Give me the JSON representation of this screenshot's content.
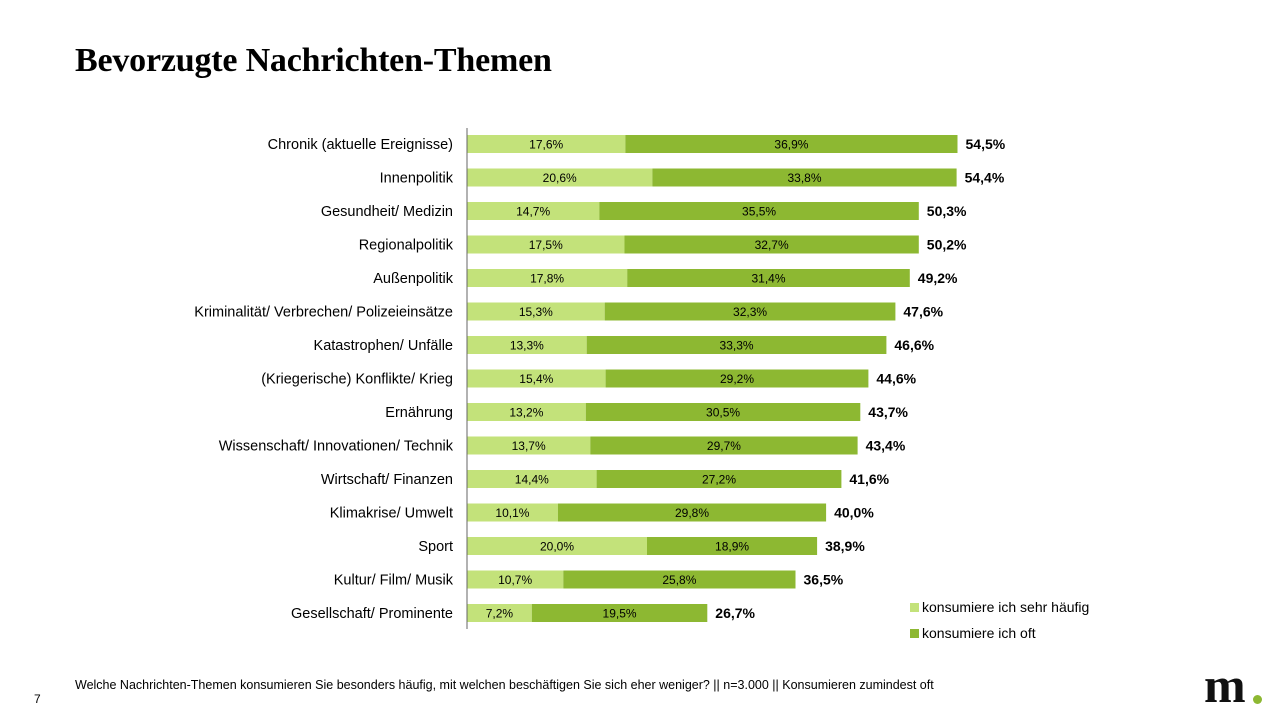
{
  "title": "Bevorzugte Nachrichten-Themen",
  "footnote": "Welche Nachrichten-Themen konsumieren Sie besonders häufig, mit welchen beschäftigen Sie sich eher weniger? || n=3.000 || Konsumieren zumindest oft",
  "page_number": "7",
  "logo": {
    "text": "m",
    "dot_color": "#8db832"
  },
  "colors": {
    "light": "#c3e27a",
    "dark": "#8db832"
  },
  "legend": {
    "light_label": "konsumiere ich sehr häufig",
    "dark_label": "konsumiere ich oft"
  },
  "chart_data": {
    "type": "bar",
    "orientation": "horizontal",
    "stacked": true,
    "title": "Bevorzugte Nachrichten-Themen",
    "xlim": [
      0,
      60
    ],
    "categories": [
      "Chronik (aktuelle Ereignisse)",
      "Innenpolitik",
      "Gesundheit/ Medizin",
      "Regionalpolitik",
      "Außenpolitik",
      "Kriminalität/ Verbrechen/ Polizeieinsätze",
      "Katastrophen/ Unfälle",
      "(Kriegerische) Konflikte/ Krieg",
      "Ernährung",
      "Wissenschaft/ Innovationen/ Technik",
      "Wirtschaft/ Finanzen",
      "Klimakrise/ Umwelt",
      "Sport",
      "Kultur/ Film/ Musik",
      "Gesellschaft/ Prominente"
    ],
    "series": [
      {
        "name": "konsumiere ich sehr häufig",
        "values": [
          17.6,
          20.6,
          14.7,
          17.5,
          17.8,
          15.3,
          13.3,
          15.4,
          13.2,
          13.7,
          14.4,
          10.1,
          20.0,
          10.7,
          7.2
        ]
      },
      {
        "name": "konsumiere ich oft",
        "values": [
          36.9,
          33.8,
          35.5,
          32.7,
          31.4,
          32.3,
          33.3,
          29.2,
          30.5,
          29.7,
          27.2,
          29.8,
          18.9,
          25.8,
          19.5
        ]
      }
    ],
    "totals": [
      54.5,
      54.4,
      50.3,
      50.2,
      49.2,
      47.6,
      46.6,
      44.6,
      43.7,
      43.4,
      41.6,
      40.0,
      38.9,
      36.5,
      26.7
    ]
  }
}
